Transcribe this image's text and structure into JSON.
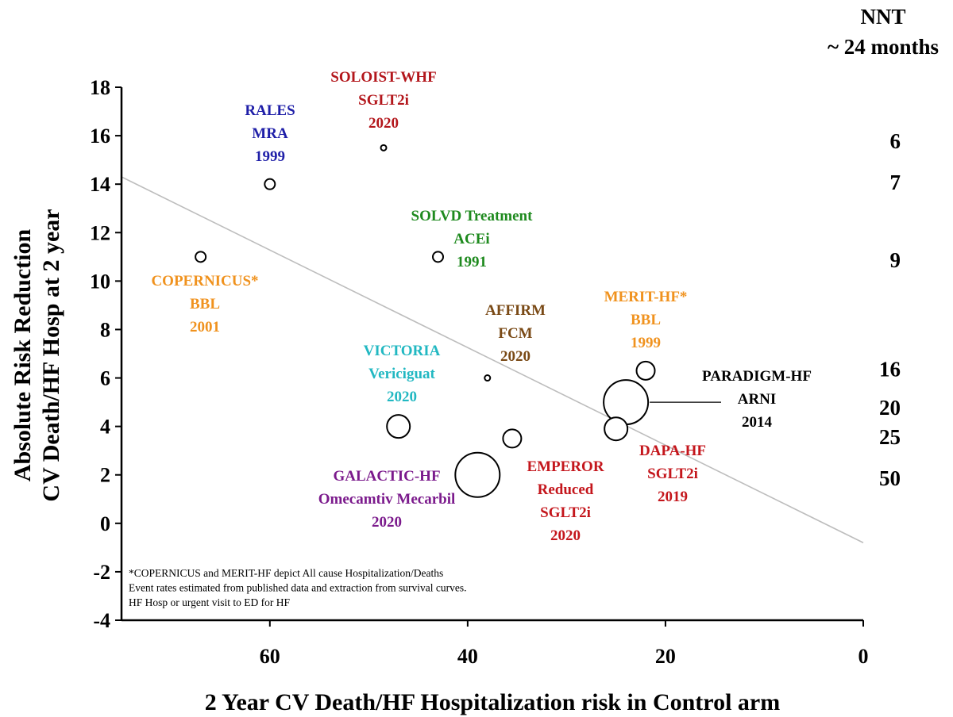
{
  "chart_data": {
    "type": "scatter",
    "title": "",
    "xlabel": "2 Year CV Death/HF Hospitalization risk in Control arm",
    "ylabel_lines": [
      "Absolute Risk Reduction",
      "CV Death/HF Hosp at 2 year"
    ],
    "xlim": [
      75,
      0
    ],
    "ylim": [
      -4,
      18
    ],
    "xticks": [
      "60",
      "40",
      "20",
      "0"
    ],
    "xtick_values": [
      60,
      40,
      20,
      0
    ],
    "yticks": [
      "18",
      "16",
      "14",
      "12",
      "10",
      "8",
      "6",
      "4",
      "2",
      "0",
      "-2",
      "-4"
    ],
    "ytick_values": [
      18,
      16,
      14,
      12,
      10,
      8,
      6,
      4,
      2,
      0,
      -2,
      -4
    ],
    "grid": false,
    "trendline": {
      "x": [
        75,
        0
      ],
      "y": [
        14.3,
        -0.8
      ],
      "color": "#bdbdbd"
    },
    "points": [
      {
        "name": "RALES",
        "x": 60,
        "y": 14,
        "size": "small",
        "label": [
          "RALES",
          "MRA",
          "1999"
        ],
        "color": "#1f1fa8"
      },
      {
        "name": "SOLOIST-WHF",
        "x": 48.5,
        "y": 15.5,
        "size": "tiny",
        "label": [
          "SOLOIST-WHF",
          "SGLT2i",
          "2020"
        ],
        "color": "#b3161b"
      },
      {
        "name": "COPERNICUS",
        "x": 67,
        "y": 11,
        "size": "small",
        "label": [
          "COPERNICUS*",
          "BBL",
          "2001"
        ],
        "color": "#f0921e"
      },
      {
        "name": "SOLVD Treatment",
        "x": 43,
        "y": 11,
        "size": "small",
        "label": [
          "SOLVD Treatment",
          "ACEi",
          "1991"
        ],
        "color": "#1e8a1e"
      },
      {
        "name": "AFFIRM",
        "x": 38,
        "y": 6,
        "size": "tiny",
        "label": [
          "AFFIRM",
          "FCM",
          "2020"
        ],
        "color": "#7a4a16"
      },
      {
        "name": "VICTORIA",
        "x": 47,
        "y": 4,
        "size": "medium",
        "label": [
          "VICTORIA",
          "Vericiguat",
          "2020"
        ],
        "color": "#22b8c2"
      },
      {
        "name": "GALACTIC-HF",
        "x": 39,
        "y": 2,
        "size": "large",
        "label": [
          "GALACTIC-HF",
          "Omecamtiv Mecarbil",
          "2020"
        ],
        "color": "#7b1a8c"
      },
      {
        "name": "EMPEROR Reduced",
        "x": 35.5,
        "y": 3.5,
        "size": "medium-small",
        "label": [
          "EMPEROR",
          "Reduced",
          "SGLT2i",
          "2020"
        ],
        "color": "#c4161c"
      },
      {
        "name": "MERIT-HF",
        "x": 22,
        "y": 6.3,
        "size": "medium-small",
        "label": [
          "MERIT-HF*",
          "BBL",
          "1999"
        ],
        "color": "#f0921e"
      },
      {
        "name": "PARADIGM-HF",
        "x": 24,
        "y": 5,
        "size": "large",
        "label": [
          "PARADIGM-HF",
          "ARNI",
          "2014"
        ],
        "color": "#000000"
      },
      {
        "name": "DAPA-HF",
        "x": 25,
        "y": 3.9,
        "size": "medium",
        "label": [
          "DAPA-HF",
          "SGLT2i",
          "2019"
        ],
        "color": "#c4161c"
      }
    ],
    "nnt": {
      "header": [
        "NNT",
        "~ 24 months"
      ],
      "values": [
        {
          "text": "6",
          "y": 15.8
        },
        {
          "text": "7",
          "y": 14.1
        },
        {
          "text": "9",
          "y": 10.9
        },
        {
          "text": "16",
          "y": 6.4
        },
        {
          "text": "20",
          "y": 4.8
        },
        {
          "text": "25",
          "y": 3.6
        },
        {
          "text": "50",
          "y": 1.9
        }
      ]
    },
    "footnote": [
      "*COPERNICUS and MERIT-HF depict All cause Hospitalization/Deaths",
      "Event rates estimated from published data and extraction from survival curves.",
      "HF Hosp or urgent visit to ED for HF"
    ]
  }
}
